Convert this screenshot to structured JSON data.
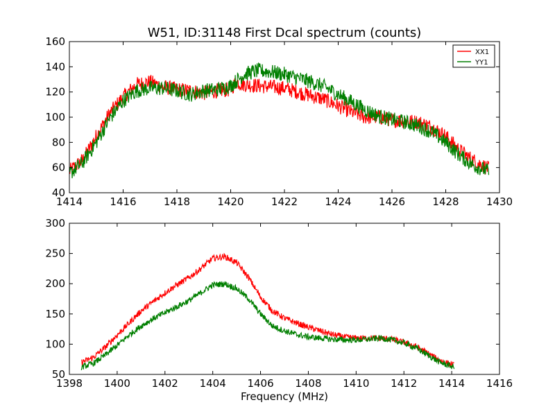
{
  "figure": {
    "title": "W51, ID:31148 First Dcal spectrum (counts)",
    "xlabel": "Frequency (MHz)"
  },
  "colors": {
    "XX1": "#ff0000",
    "YY1": "#007f00",
    "axes": "#000000",
    "background": "#ffffff"
  },
  "chart_data": [
    {
      "type": "line",
      "title": "W51, ID:31148 First Dcal spectrum (counts)",
      "xlabel": "",
      "ylabel": "",
      "xlim": [
        1414,
        1430
      ],
      "ylim": [
        40,
        160
      ],
      "xticks": [
        1414,
        1416,
        1418,
        1420,
        1422,
        1424,
        1426,
        1428,
        1430
      ],
      "yticks": [
        40,
        60,
        80,
        100,
        120,
        140,
        160
      ],
      "grid": false,
      "legend": {
        "placement": "top-right",
        "entries": [
          "XX1",
          "YY1"
        ]
      },
      "noise_amplitude": 6,
      "series": [
        {
          "name": "XX1",
          "color": "#ff0000",
          "x": [
            1414.0,
            1414.5,
            1415.0,
            1415.5,
            1416.0,
            1416.5,
            1417.0,
            1417.5,
            1418.0,
            1418.5,
            1419.0,
            1419.5,
            1420.0,
            1420.2,
            1420.5,
            1421.0,
            1421.5,
            1422.0,
            1422.5,
            1423.0,
            1423.5,
            1424.0,
            1424.5,
            1425.0,
            1425.5,
            1426.0,
            1426.5,
            1427.0,
            1427.5,
            1428.0,
            1428.5,
            1429.0,
            1429.6
          ],
          "y": [
            57,
            66,
            85,
            103,
            116,
            126,
            128,
            124,
            122,
            121,
            119,
            121,
            122,
            128,
            126,
            125,
            124,
            123,
            120,
            117,
            114,
            109,
            104,
            100,
            100,
            98,
            97,
            96,
            92,
            85,
            74,
            66,
            59
          ]
        },
        {
          "name": "YY1",
          "color": "#007f00",
          "x": [
            1414.0,
            1414.5,
            1415.0,
            1415.5,
            1416.0,
            1416.5,
            1417.0,
            1417.5,
            1418.0,
            1418.5,
            1419.0,
            1419.5,
            1420.0,
            1420.5,
            1421.0,
            1421.5,
            1422.0,
            1422.5,
            1423.0,
            1423.5,
            1424.0,
            1424.5,
            1425.0,
            1425.5,
            1426.0,
            1426.5,
            1427.0,
            1427.5,
            1428.0,
            1428.5,
            1429.0,
            1429.6
          ],
          "y": [
            55,
            64,
            80,
            99,
            113,
            121,
            123,
            123,
            121,
            118,
            121,
            122,
            125,
            134,
            137,
            136,
            134,
            131,
            128,
            124,
            118,
            112,
            106,
            101,
            98,
            96,
            93,
            88,
            80,
            70,
            62,
            57
          ]
        }
      ]
    },
    {
      "type": "line",
      "title": "",
      "xlabel": "Frequency (MHz)",
      "ylabel": "",
      "xlim": [
        1398,
        1416
      ],
      "ylim": [
        50,
        300
      ],
      "xticks": [
        1398,
        1400,
        1402,
        1404,
        1406,
        1408,
        1410,
        1412,
        1414,
        1416
      ],
      "yticks": [
        50,
        100,
        150,
        200,
        250,
        300
      ],
      "grid": false,
      "noise_amplitude": 5,
      "series": [
        {
          "name": "XX1",
          "color": "#ff0000",
          "x": [
            1398.5,
            1399.0,
            1399.5,
            1400.0,
            1400.5,
            1401.0,
            1401.5,
            1402.0,
            1402.5,
            1403.0,
            1403.5,
            1404.0,
            1404.5,
            1405.0,
            1405.5,
            1406.0,
            1406.5,
            1407.0,
            1407.5,
            1408.0,
            1408.5,
            1409.0,
            1409.5,
            1410.0,
            1410.5,
            1411.0,
            1411.5,
            1412.0,
            1412.5,
            1413.0,
            1413.5,
            1414.1
          ],
          "y": [
            70,
            78,
            95,
            115,
            135,
            155,
            170,
            185,
            198,
            210,
            225,
            242,
            245,
            235,
            210,
            178,
            155,
            143,
            135,
            128,
            122,
            116,
            112,
            110,
            110,
            110,
            108,
            103,
            96,
            85,
            73,
            65
          ]
        },
        {
          "name": "YY1",
          "color": "#007f00",
          "x": [
            1398.5,
            1399.0,
            1399.5,
            1400.0,
            1400.5,
            1401.0,
            1401.5,
            1402.0,
            1402.5,
            1403.0,
            1403.5,
            1404.0,
            1404.5,
            1405.0,
            1405.5,
            1406.0,
            1406.5,
            1407.0,
            1407.5,
            1408.0,
            1408.5,
            1409.0,
            1409.5,
            1410.0,
            1410.5,
            1411.0,
            1411.5,
            1412.0,
            1412.5,
            1413.0,
            1413.5,
            1414.1
          ],
          "y": [
            62,
            68,
            82,
            98,
            115,
            130,
            142,
            152,
            162,
            172,
            185,
            198,
            200,
            192,
            175,
            150,
            130,
            122,
            116,
            112,
            110,
            108,
            107,
            107,
            108,
            110,
            107,
            102,
            94,
            82,
            70,
            62
          ]
        }
      ]
    }
  ]
}
